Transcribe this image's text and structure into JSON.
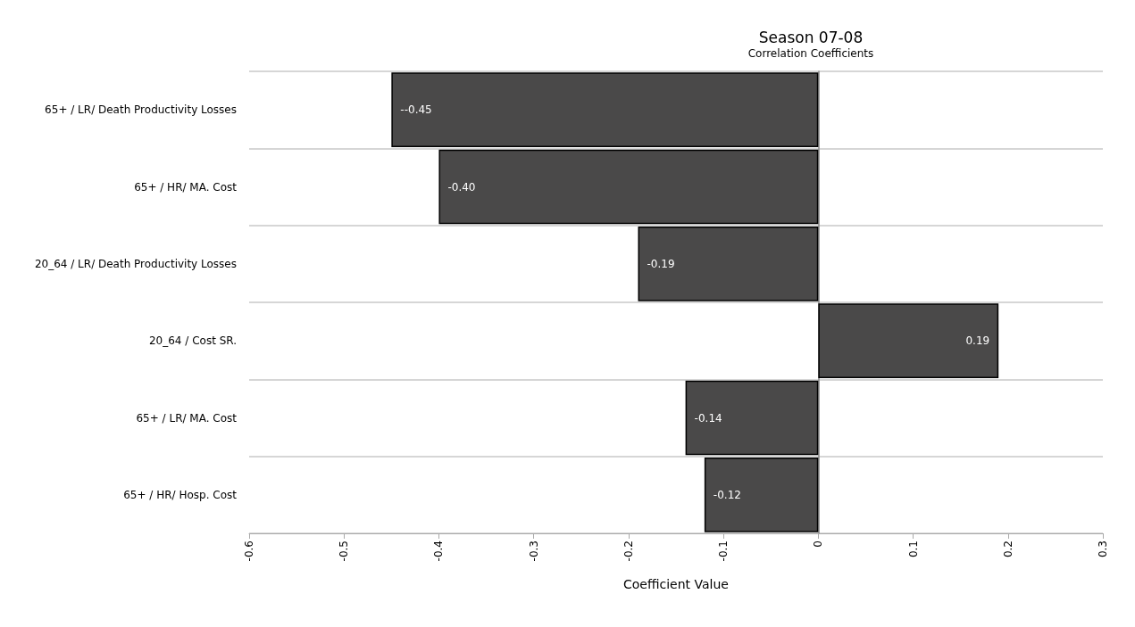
{
  "chart_data": {
    "type": "bar",
    "orientation": "horizontal",
    "title": "Season 07-08",
    "subtitle": "Correlation Coefficients",
    "xlabel": "Coefficient Value",
    "categories": [
      "65+ / LR/ Death Productivity Losses",
      "65+ / HR/ MA. Cost",
      "20_64 / LR/ Death Productivity Losses",
      "20_64 / Cost SR.",
      "65+ / LR/ MA. Cost",
      "65+ / HR/ Hosp. Cost"
    ],
    "values": [
      -0.45,
      -0.4,
      -0.19,
      0.19,
      -0.14,
      -0.12
    ],
    "value_labels": [
      "--0.45",
      "-0.40",
      "-0.19",
      "0.19",
      "-0.14",
      "-0.12"
    ],
    "color": "#4a4949",
    "xlim": [
      -0.6,
      0.3
    ],
    "xticks": [
      -0.6,
      -0.5,
      -0.4,
      -0.3,
      -0.2,
      -0.1,
      0,
      0.1,
      0.2,
      0.3
    ],
    "grid": "y"
  }
}
